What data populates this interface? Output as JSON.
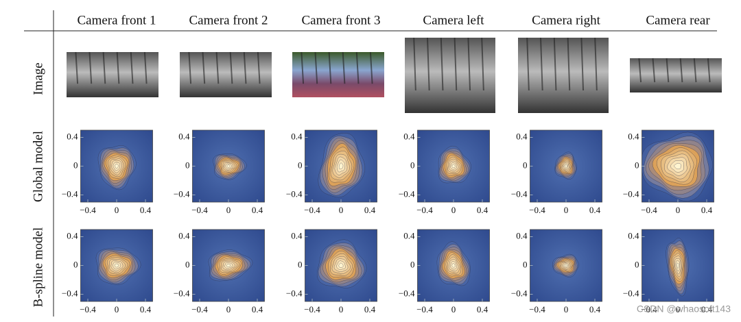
{
  "columns": [
    "Camera front 1",
    "Camera front 2",
    "Camera front 3",
    "Camera left",
    "Camera right",
    "Camera rear"
  ],
  "rows": [
    "Image",
    "Global model",
    "B-spline model"
  ],
  "axis": {
    "xlim": [
      -0.5,
      0.5
    ],
    "ylim": [
      -0.5,
      0.5
    ],
    "xticks": [
      {
        "value": -0.4,
        "label": "−0.4"
      },
      0,
      0.4
    ],
    "yticks": [
      {
        "value": -0.4,
        "label": "−0.4"
      },
      0,
      0.4
    ]
  },
  "watermark": "CSDN @whaosoft143"
}
